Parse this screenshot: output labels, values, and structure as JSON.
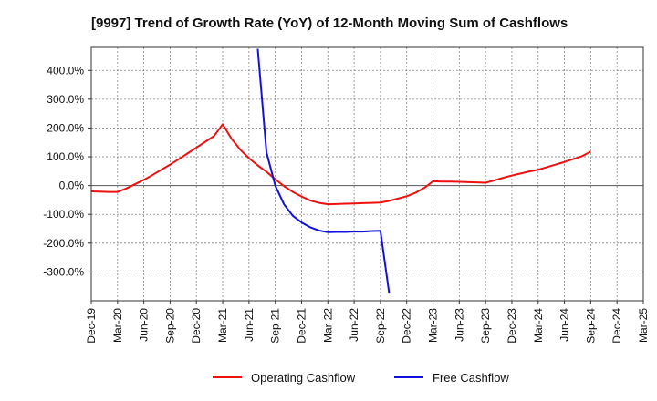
{
  "chart_data": {
    "type": "line",
    "title": "[9997]  Trend of Growth Rate (YoY) of 12-Month Moving Sum of Cashflows",
    "xlabel": "",
    "ylabel": "",
    "ylim": [
      -400,
      480
    ],
    "y_ticks": [
      400,
      300,
      200,
      100,
      0,
      -100,
      -200,
      -300
    ],
    "y_tick_labels": [
      "400.0%",
      "300.0%",
      "200.0%",
      "100.0%",
      "0.0%",
      "-100.0%",
      "-200.0%",
      "-300.0%"
    ],
    "x_tick_labels": [
      "Dec-19",
      "Mar-20",
      "Jun-20",
      "Sep-20",
      "Dec-20",
      "Mar-21",
      "Jun-21",
      "Sep-21",
      "Dec-21",
      "Mar-22",
      "Jun-22",
      "Sep-22",
      "Dec-22",
      "Mar-23",
      "Jun-23",
      "Sep-23",
      "Dec-23",
      "Mar-24",
      "Jun-24",
      "Sep-24",
      "Dec-24",
      "Mar-25"
    ],
    "grid": true,
    "legend_position": "bottom-center",
    "series": [
      {
        "name": "Operating Cashflow",
        "color": "#ee1111",
        "points": [
          [
            "Dec-19",
            -20
          ],
          [
            "Jan-20",
            -21
          ],
          [
            "Feb-20",
            -22
          ],
          [
            "Mar-20",
            -22
          ],
          [
            "Apr-20",
            -10
          ],
          [
            "May-20",
            5
          ],
          [
            "Jun-20",
            20
          ],
          [
            "Jul-20",
            37
          ],
          [
            "Aug-20",
            55
          ],
          [
            "Sep-20",
            73
          ],
          [
            "Oct-20",
            92
          ],
          [
            "Nov-20",
            112
          ],
          [
            "Dec-20",
            132
          ],
          [
            "Jan-21",
            152
          ],
          [
            "Feb-21",
            172
          ],
          [
            "Mar-21",
            213
          ],
          [
            "Apr-21",
            163
          ],
          [
            "May-21",
            125
          ],
          [
            "Jun-21",
            95
          ],
          [
            "Jul-21",
            70
          ],
          [
            "Aug-21",
            48
          ],
          [
            "Sep-21",
            22
          ],
          [
            "Oct-21",
            -2
          ],
          [
            "Nov-21",
            -22
          ],
          [
            "Dec-21",
            -38
          ],
          [
            "Jan-22",
            -52
          ],
          [
            "Feb-22",
            -60
          ],
          [
            "Mar-22",
            -65
          ],
          [
            "Apr-22",
            -64
          ],
          [
            "May-22",
            -63
          ],
          [
            "Jun-22",
            -62
          ],
          [
            "Jul-22",
            -61
          ],
          [
            "Aug-22",
            -60
          ],
          [
            "Sep-22",
            -59
          ],
          [
            "Oct-22",
            -53
          ],
          [
            "Nov-22",
            -45
          ],
          [
            "Dec-22",
            -37
          ],
          [
            "Jan-23",
            -25
          ],
          [
            "Feb-23",
            -8
          ],
          [
            "Mar-23",
            15
          ],
          [
            "Apr-23",
            14
          ],
          [
            "May-23",
            14
          ],
          [
            "Jun-23",
            13
          ],
          [
            "Jul-23",
            12
          ],
          [
            "Aug-23",
            11
          ],
          [
            "Sep-23",
            10
          ],
          [
            "Oct-23",
            18
          ],
          [
            "Nov-23",
            27
          ],
          [
            "Dec-23",
            35
          ],
          [
            "Jan-24",
            42
          ],
          [
            "Feb-24",
            49
          ],
          [
            "Mar-24",
            55
          ],
          [
            "Apr-24",
            64
          ],
          [
            "May-24",
            73
          ],
          [
            "Jun-24",
            82
          ],
          [
            "Jul-24",
            92
          ],
          [
            "Aug-24",
            102
          ],
          [
            "Sep-24",
            118
          ]
        ]
      },
      {
        "name": "Free Cashflow",
        "color": "#1111dd",
        "points": [
          [
            "Jul-21",
            475
          ],
          [
            "Aug-21",
            115
          ],
          [
            "Sep-21",
            0
          ],
          [
            "Oct-21",
            -65
          ],
          [
            "Nov-21",
            -105
          ],
          [
            "Dec-21",
            -128
          ],
          [
            "Jan-22",
            -145
          ],
          [
            "Feb-22",
            -156
          ],
          [
            "Mar-22",
            -162
          ],
          [
            "Apr-22",
            -161
          ],
          [
            "May-22",
            -161
          ],
          [
            "Jun-22",
            -160
          ],
          [
            "Jul-22",
            -160
          ],
          [
            "Aug-22",
            -158
          ],
          [
            "Sep-22",
            -157
          ],
          [
            "Oct-22",
            -375
          ]
        ]
      }
    ]
  }
}
